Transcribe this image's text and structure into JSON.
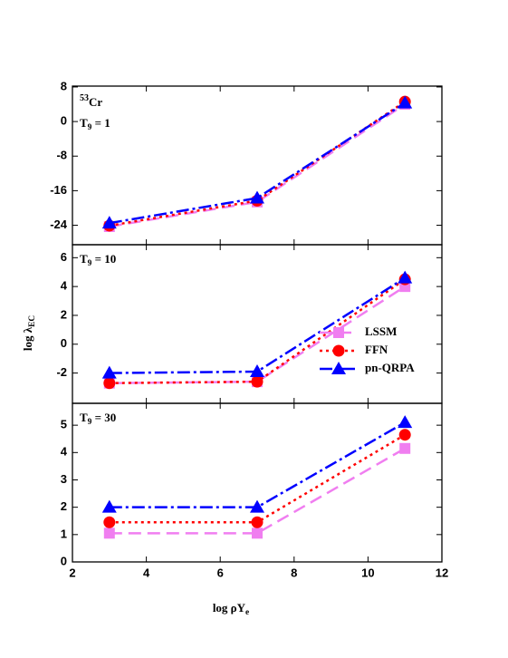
{
  "chart_data": [
    {
      "type": "line",
      "annotation": {
        "sup": "53",
        "base": "Cr"
      },
      "annotation2": {
        "base": "T",
        "sub": "9",
        "tail": " = 1"
      },
      "x": [
        3,
        7,
        11
      ],
      "xlim": [
        2,
        12
      ],
      "xticks": [
        2,
        4,
        6,
        8,
        10,
        12
      ],
      "ylim": [
        -28.5,
        8.2
      ],
      "yticks": [
        -24,
        -16,
        -8,
        0,
        8
      ],
      "series": [
        {
          "name": "LSSM",
          "color": "#f07ef0",
          "values": [
            -24.3,
            -18.6,
            4.0
          ]
        },
        {
          "name": "FFN",
          "color": "#ff0000",
          "values": [
            -24.1,
            -18.3,
            4.6
          ]
        },
        {
          "name": "pn-QRPA",
          "color": "#0000ff",
          "values": [
            -23.5,
            -17.7,
            4.3
          ]
        }
      ]
    },
    {
      "type": "line",
      "annotation2": {
        "base": "T",
        "sub": "9",
        "tail": " = 10"
      },
      "ylabel": {
        "base": "log λ",
        "sub": "EC"
      },
      "legend": "lower right",
      "x": [
        3,
        7,
        11
      ],
      "xlim": [
        2,
        12
      ],
      "xticks": [
        2,
        4,
        6,
        8,
        10,
        12
      ],
      "ylim": [
        -4.1,
        6.9
      ],
      "yticks": [
        -2,
        0,
        2,
        4,
        6
      ],
      "series": [
        {
          "name": "LSSM",
          "color": "#f07ef0",
          "values": [
            -2.7,
            -2.6,
            4.0
          ]
        },
        {
          "name": "FFN",
          "color": "#ff0000",
          "values": [
            -2.7,
            -2.6,
            4.5
          ]
        },
        {
          "name": "pn-QRPA",
          "color": "#0000ff",
          "values": [
            -2.0,
            -1.9,
            4.6
          ]
        }
      ]
    },
    {
      "type": "line",
      "annotation2": {
        "base": "T",
        "sub": "9",
        "tail": " = 30"
      },
      "xlabel": {
        "base": "log ρY",
        "sub": "e"
      },
      "x": [
        3,
        7,
        11
      ],
      "xlim": [
        2,
        12
      ],
      "xticks": [
        2,
        4,
        6,
        8,
        10,
        12
      ],
      "ylim": [
        0,
        5.8
      ],
      "yticks": [
        0,
        1,
        2,
        3,
        4,
        5
      ],
      "series": [
        {
          "name": "LSSM",
          "color": "#f07ef0",
          "values": [
            1.05,
            1.05,
            4.15
          ]
        },
        {
          "name": "FFN",
          "color": "#ff0000",
          "values": [
            1.45,
            1.45,
            4.65
          ]
        },
        {
          "name": "pn-QRPA",
          "color": "#0000ff",
          "values": [
            2.0,
            2.0,
            5.1
          ]
        }
      ]
    }
  ]
}
